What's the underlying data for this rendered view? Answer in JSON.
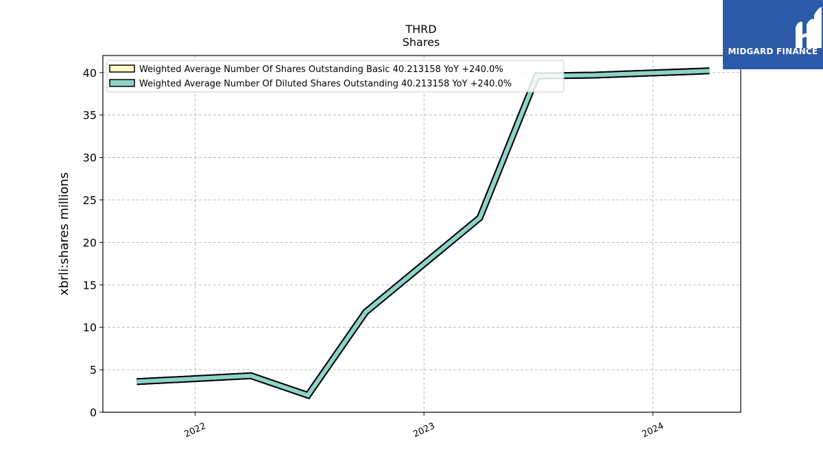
{
  "chart_data": {
    "type": "line",
    "title": "THRD",
    "subtitle": "Shares",
    "xlabel": "",
    "ylabel": "xbrli:shares millions",
    "xlim": [
      "2021-08-07",
      "2024-05-20"
    ],
    "ylim": [
      0,
      42
    ],
    "yticks": [
      0,
      5,
      10,
      15,
      20,
      25,
      30,
      35,
      40
    ],
    "xticks": [
      {
        "date": "2022-01-01",
        "label": "2022"
      },
      {
        "date": "2023-01-01",
        "label": "2023"
      },
      {
        "date": "2024-01-01",
        "label": "2024"
      }
    ],
    "grid": true,
    "legend_position": "top-left",
    "x": [
      "2021-09-30",
      "2022-03-31",
      "2022-06-30",
      "2022-09-30",
      "2023-03-31",
      "2023-06-30",
      "2023-09-30",
      "2024-03-31"
    ],
    "series": [
      {
        "name": "Weighted Average Number Of Shares Outstanding Basic",
        "legend_label": "Weighted Average Number Of Shares Outstanding Basic  40.213158 YoY +240.0%",
        "color": "#ffffbf",
        "values": [
          3.6,
          4.3,
          2.0,
          11.8,
          22.9,
          39.6,
          39.7,
          40.2
        ]
      },
      {
        "name": "Weighted Average Number Of Diluted Shares Outstanding",
        "legend_label": "Weighted Average Number Of Diluted Shares Outstanding  40.213158 YoY +240.0%",
        "color": "#8dd3c7",
        "values": [
          3.6,
          4.3,
          2.0,
          11.8,
          22.9,
          39.6,
          39.7,
          40.2
        ]
      }
    ]
  },
  "logo": {
    "text": "MIDGARD FINANCE",
    "background": "#2b5aa8",
    "icon": "midgard-logo-mark"
  }
}
